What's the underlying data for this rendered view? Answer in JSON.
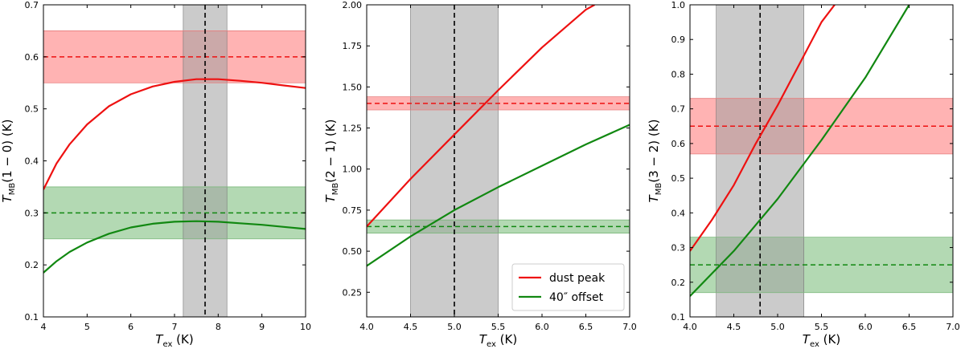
{
  "chart_data": [
    {
      "type": "line",
      "panel": "a",
      "xlabel": "T_ex (K)",
      "ylabel": "T_MB(1 − 0) (K)",
      "xlim": [
        4,
        10
      ],
      "ylim": [
        0.1,
        0.7
      ],
      "xticks": [
        4,
        5,
        6,
        7,
        8,
        9,
        10
      ],
      "xtick_labels": [
        "4",
        "5",
        "6",
        "7",
        "8",
        "9",
        "10"
      ],
      "yticks": [
        0.1,
        0.2,
        0.3,
        0.4,
        0.5,
        0.6,
        0.7
      ],
      "ytick_labels": [
        "0.1",
        "0.2",
        "0.3",
        "0.4",
        "0.5",
        "0.6",
        "0.7"
      ],
      "vband": {
        "center": 7.7,
        "low": 7.2,
        "high": 8.2
      },
      "hbands": [
        {
          "series": "dust peak",
          "value": 0.6,
          "low": 0.55,
          "high": 0.65
        },
        {
          "series": "40″ offset",
          "value": 0.3,
          "low": 0.25,
          "high": 0.35
        }
      ],
      "series": [
        {
          "name": "dust peak",
          "x": [
            4.0,
            4.3,
            4.6,
            5.0,
            5.5,
            6.0,
            6.5,
            7.0,
            7.5,
            8.0,
            8.5,
            9.0,
            9.5,
            10.0
          ],
          "values": [
            0.345,
            0.395,
            0.432,
            0.47,
            0.505,
            0.528,
            0.543,
            0.552,
            0.557,
            0.557,
            0.554,
            0.55,
            0.545,
            0.54
          ]
        },
        {
          "name": "40″ offset",
          "x": [
            4.0,
            4.3,
            4.6,
            5.0,
            5.5,
            6.0,
            6.5,
            7.0,
            7.5,
            8.0,
            8.5,
            9.0,
            9.5,
            10.0
          ],
          "values": [
            0.185,
            0.207,
            0.225,
            0.243,
            0.26,
            0.272,
            0.279,
            0.283,
            0.284,
            0.283,
            0.28,
            0.277,
            0.273,
            0.269
          ]
        }
      ]
    },
    {
      "type": "line",
      "panel": "b",
      "xlabel": "T_ex (K)",
      "ylabel": "T_MB(2 − 1) (K)",
      "xlim": [
        4.0,
        7.0
      ],
      "ylim": [
        0.1,
        2.0
      ],
      "xticks": [
        4.0,
        4.5,
        5.0,
        5.5,
        6.0,
        6.5,
        7.0
      ],
      "xtick_labels": [
        "4.0",
        "4.5",
        "5.0",
        "5.5",
        "6.0",
        "6.5",
        "7.0"
      ],
      "yticks": [
        0.25,
        0.5,
        0.75,
        1.0,
        1.25,
        1.5,
        1.75,
        2.0
      ],
      "ytick_labels": [
        "0.25",
        "0.50",
        "0.75",
        "1.00",
        "1.25",
        "1.50",
        "1.75",
        "2.00"
      ],
      "vband": {
        "center": 5.0,
        "low": 4.5,
        "high": 5.5
      },
      "hbands": [
        {
          "series": "dust peak",
          "value": 1.4,
          "low": 1.36,
          "high": 1.44
        },
        {
          "series": "40″ offset",
          "value": 0.65,
          "low": 0.61,
          "high": 0.69
        }
      ],
      "series": [
        {
          "name": "dust peak",
          "x": [
            4.0,
            4.5,
            5.0,
            5.5,
            6.0,
            6.5,
            6.6
          ],
          "values": [
            0.65,
            0.94,
            1.21,
            1.48,
            1.74,
            1.97,
            2.0
          ]
        },
        {
          "name": "40″ offset",
          "x": [
            4.0,
            4.5,
            5.0,
            5.5,
            6.0,
            6.5,
            7.0
          ],
          "values": [
            0.41,
            0.59,
            0.75,
            0.89,
            1.02,
            1.15,
            1.27
          ]
        }
      ],
      "legend": {
        "position": "lower-right",
        "entries": [
          "dust peak",
          "40″ offset"
        ]
      }
    },
    {
      "type": "line",
      "panel": "c",
      "xlabel": "T_ex (K)",
      "ylabel": "T_MB(3 − 2) (K)",
      "xlim": [
        4.0,
        7.0
      ],
      "ylim": [
        0.1,
        1.0
      ],
      "xticks": [
        4.0,
        4.5,
        5.0,
        5.5,
        6.0,
        6.5,
        7.0
      ],
      "xtick_labels": [
        "4.0",
        "4.5",
        "5.0",
        "5.5",
        "6.0",
        "6.5",
        "7.0"
      ],
      "yticks": [
        0.1,
        0.2,
        0.3,
        0.4,
        0.5,
        0.6,
        0.7,
        0.8,
        0.9,
        1.0
      ],
      "ytick_labels": [
        "0.1",
        "0.2",
        "0.3",
        "0.4",
        "0.5",
        "0.6",
        "0.7",
        "0.8",
        "0.9",
        "1.0"
      ],
      "vband": {
        "center": 4.8,
        "low": 4.3,
        "high": 5.3
      },
      "hbands": [
        {
          "series": "dust peak",
          "value": 0.65,
          "low": 0.57,
          "high": 0.73
        },
        {
          "series": "40″ offset",
          "value": 0.25,
          "low": 0.17,
          "high": 0.33
        }
      ],
      "series": [
        {
          "name": "dust peak",
          "x": [
            4.0,
            4.25,
            4.5,
            4.75,
            5.0,
            5.25,
            5.5,
            5.65
          ],
          "values": [
            0.29,
            0.38,
            0.48,
            0.6,
            0.71,
            0.83,
            0.95,
            1.0
          ]
        },
        {
          "name": "40″ offset",
          "x": [
            4.0,
            4.5,
            5.0,
            5.5,
            6.0,
            6.5
          ],
          "values": [
            0.16,
            0.29,
            0.44,
            0.61,
            0.79,
            1.0
          ]
        }
      ]
    }
  ],
  "colors": {
    "dust peak": "#ee1111",
    "40″ offset": "#118811",
    "red_band": "#ff9a9a",
    "green_band": "#99cc99",
    "grey_band": "#a0a0a0"
  }
}
